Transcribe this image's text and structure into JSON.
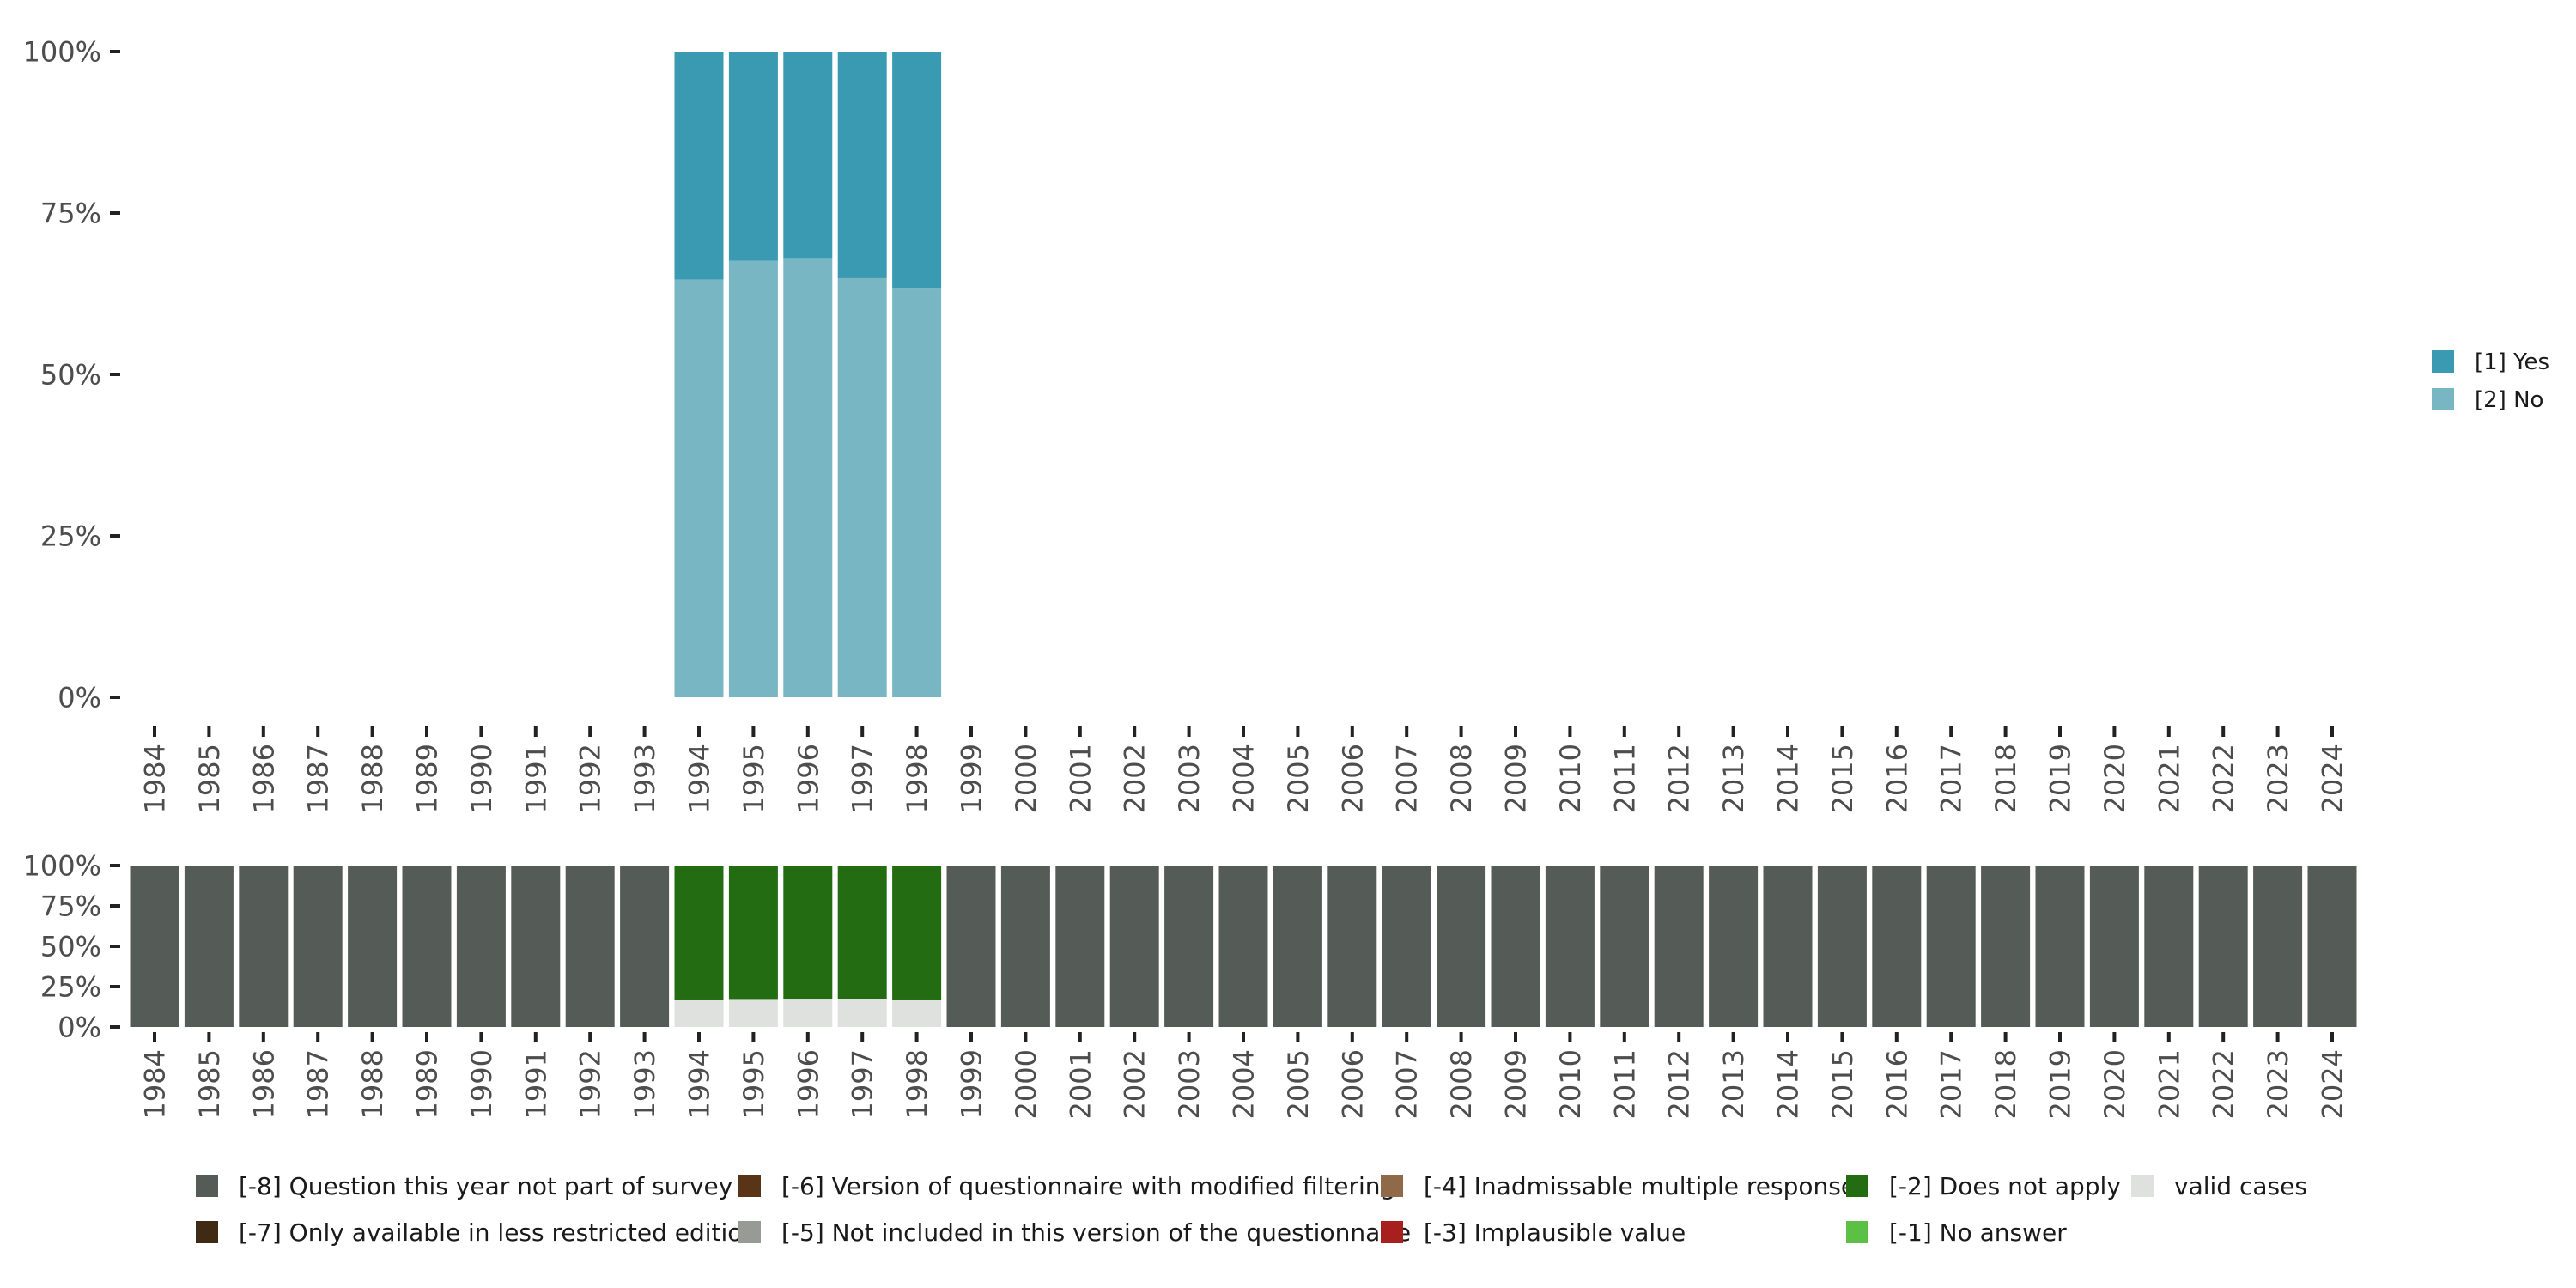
{
  "chart_data": [
    {
      "type": "bar",
      "stacked": true,
      "x": [
        1984,
        1985,
        1986,
        1987,
        1988,
        1989,
        1990,
        1991,
        1992,
        1993,
        1994,
        1995,
        1996,
        1997,
        1998,
        1999,
        2000,
        2001,
        2002,
        2003,
        2004,
        2005,
        2006,
        2007,
        2008,
        2009,
        2010,
        2011,
        2012,
        2013,
        2014,
        2015,
        2016,
        2017,
        2018,
        2019,
        2020,
        2021,
        2022,
        2023,
        2024
      ],
      "y_ticks": [
        "0%",
        "25%",
        "50%",
        "75%",
        "100%"
      ],
      "ylim": [
        0,
        100
      ],
      "series": [
        {
          "name": "[2] No",
          "color": "#78b6c4",
          "values": {
            "1994": 64.7,
            "1995": 67.6,
            "1996": 67.9,
            "1997": 64.9,
            "1998": 63.4
          }
        },
        {
          "name": "[1] Yes",
          "color": "#3a9ab2",
          "values": {
            "1994": 35.3,
            "1995": 32.4,
            "1996": 32.1,
            "1997": 35.1,
            "1998": 36.6
          }
        }
      ],
      "legend": [
        {
          "label": "[1] Yes",
          "color": "#3a9ab2"
        },
        {
          "label": "[2] No",
          "color": "#78b6c4"
        }
      ],
      "legend_position": "right"
    },
    {
      "type": "bar",
      "stacked": true,
      "x": [
        1984,
        1985,
        1986,
        1987,
        1988,
        1989,
        1990,
        1991,
        1992,
        1993,
        1994,
        1995,
        1996,
        1997,
        1998,
        1999,
        2000,
        2001,
        2002,
        2003,
        2004,
        2005,
        2006,
        2007,
        2008,
        2009,
        2010,
        2011,
        2012,
        2013,
        2014,
        2015,
        2016,
        2017,
        2018,
        2019,
        2020,
        2021,
        2022,
        2023,
        2024
      ],
      "y_ticks": [
        "0%",
        "25%",
        "50%",
        "75%",
        "100%"
      ],
      "ylim": [
        0,
        100
      ],
      "series": [
        {
          "name": "valid cases",
          "color": "#dfe1df",
          "values": {
            "1994": 16.5,
            "1995": 16.8,
            "1996": 17.0,
            "1997": 17.3,
            "1998": 16.5
          }
        },
        {
          "name": "[-2] Does not apply",
          "color": "#236c12",
          "values": {
            "1994": 83.5,
            "1995": 83.2,
            "1996": 83.0,
            "1997": 82.7,
            "1998": 83.5
          }
        },
        {
          "name": "[-8] Question this year not part of survey",
          "color": "#555b57",
          "values": {
            "1984": 100,
            "1985": 100,
            "1986": 100,
            "1987": 100,
            "1988": 100,
            "1989": 100,
            "1990": 100,
            "1991": 100,
            "1992": 100,
            "1993": 100,
            "1999": 100,
            "2000": 100,
            "2001": 100,
            "2002": 100,
            "2003": 100,
            "2004": 100,
            "2005": 100,
            "2006": 100,
            "2007": 100,
            "2008": 100,
            "2009": 100,
            "2010": 100,
            "2011": 100,
            "2012": 100,
            "2013": 100,
            "2014": 100,
            "2015": 100,
            "2016": 100,
            "2017": 100,
            "2018": 100,
            "2019": 100,
            "2020": 100,
            "2021": 100,
            "2022": 100,
            "2023": 100,
            "2024": 100
          }
        }
      ],
      "legend": [
        {
          "label": "[-8] Question this year not part of survey",
          "color": "#555b57"
        },
        {
          "label": "[-6] Version of questionnaire with modified filtering",
          "color": "#5a3417"
        },
        {
          "label": "[-4] Inadmissable multiple response",
          "color": "#8e6a49"
        },
        {
          "label": "[-2] Does not apply",
          "color": "#236c12"
        },
        {
          "label": "valid cases",
          "color": "#dfe1df"
        },
        {
          "label": "[-7] Only available in less restricted edition",
          "color": "#3f2a14"
        },
        {
          "label": "[-5] Not included in this version of the questionnaire",
          "color": "#989a96"
        },
        {
          "label": "[-3] Implausible value",
          "color": "#a8201d"
        },
        {
          "label": "[-1] No answer",
          "color": "#5cc044"
        }
      ],
      "legend_position": "bottom"
    }
  ]
}
